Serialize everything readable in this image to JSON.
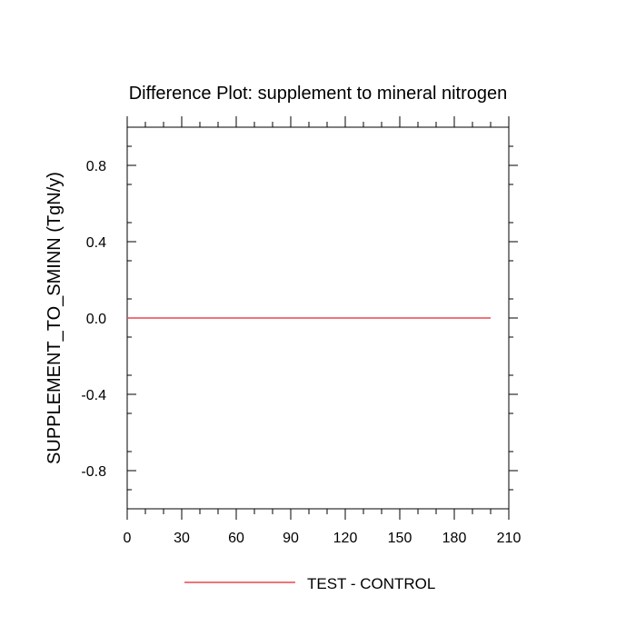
{
  "chart_data": {
    "type": "line",
    "title": "Difference Plot: supplement to mineral nitrogen",
    "xlabel": "",
    "ylabel": "SUPPLEMENT_TO_SMINN  (TgN/y)",
    "xlim": [
      0,
      210
    ],
    "ylim": [
      -1.0,
      1.0
    ],
    "x_ticks": [
      0,
      30,
      60,
      90,
      120,
      150,
      180,
      210
    ],
    "x_tick_labels": [
      "0",
      "30",
      "60",
      "90",
      "120",
      "150",
      "180",
      "210"
    ],
    "y_ticks": [
      0.8,
      0.4,
      0.0,
      -0.4,
      -0.8
    ],
    "y_tick_labels": [
      "0.8",
      "0.4",
      "0.0",
      "-0.4",
      "-0.8"
    ],
    "grid": false,
    "legend_position": "bottom",
    "series": [
      {
        "name": "TEST - CONTROL",
        "color": "#e8474e",
        "x": [
          0,
          20,
          40,
          60,
          80,
          100,
          120,
          140,
          160,
          180,
          200
        ],
        "y": [
          0,
          0,
          0,
          0,
          0,
          0,
          0,
          0,
          0,
          0,
          0
        ]
      }
    ]
  }
}
